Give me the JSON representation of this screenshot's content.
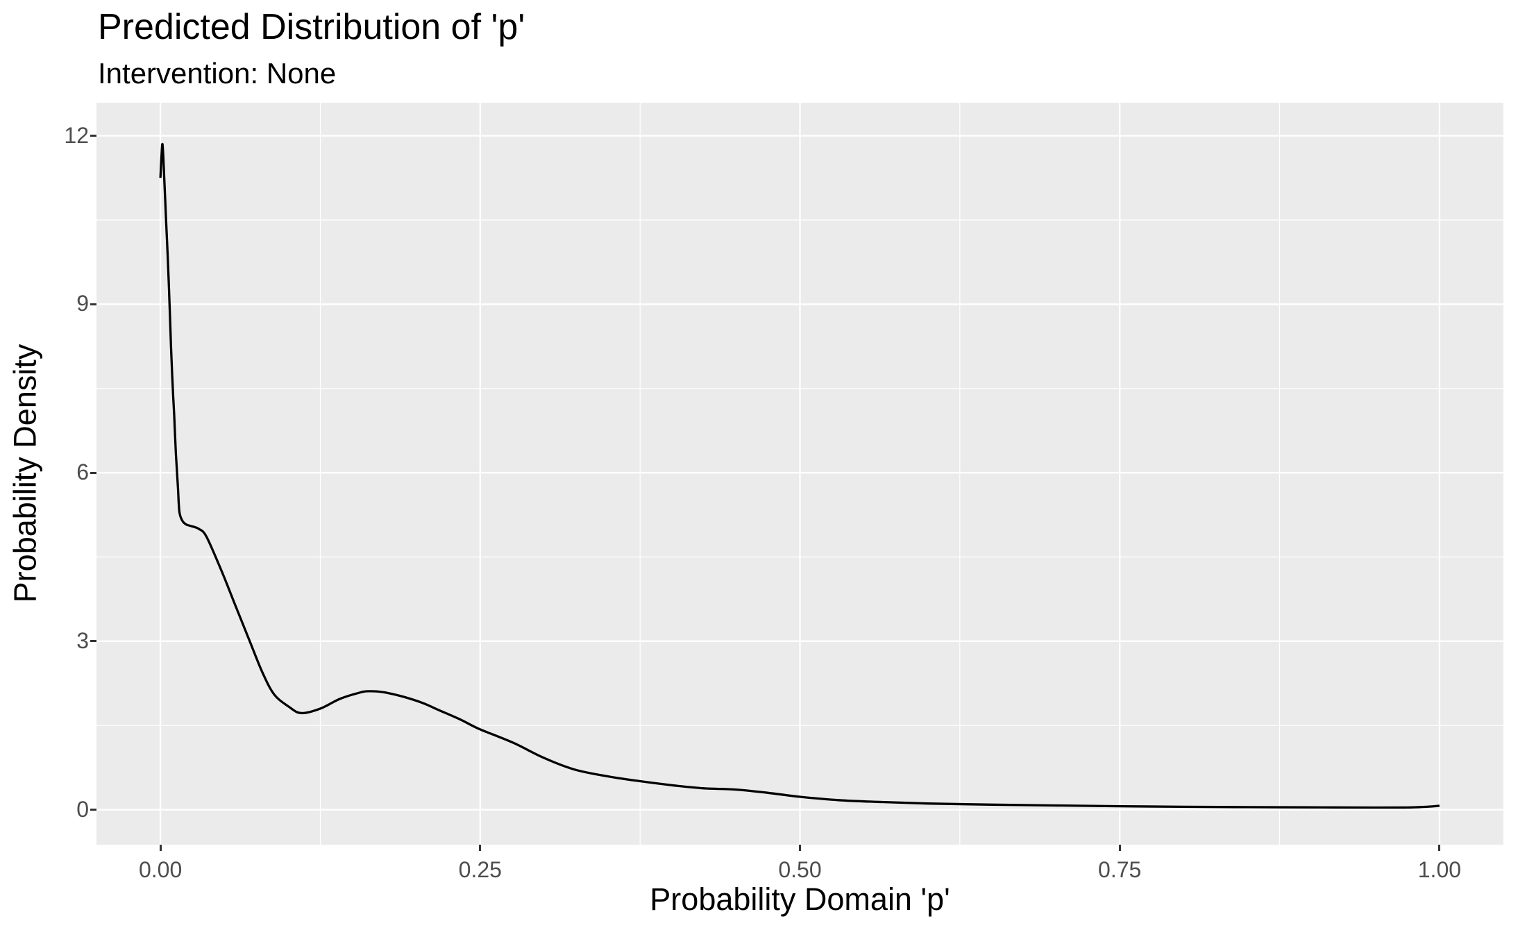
{
  "chart_data": {
    "type": "line",
    "subtype": "kernel-density",
    "title": "Predicted Distribution of 'p'",
    "subtitle": "Intervention: None",
    "xlabel": "Probability Domain 'p'",
    "ylabel": "Probability Density",
    "xlim": [
      -0.05,
      1.05
    ],
    "ylim": [
      -0.623,
      12.588
    ],
    "x_ticks": {
      "values": [
        0,
        0.25,
        0.5,
        0.75,
        1.0
      ],
      "labels": [
        "0.00",
        "0.25",
        "0.50",
        "0.75",
        "1.00"
      ]
    },
    "y_ticks": {
      "values": [
        0,
        3,
        6,
        9,
        12
      ],
      "labels": [
        "0",
        "3",
        "6",
        "9",
        "12"
      ]
    },
    "x_minor_ticks": [
      0.125,
      0.375,
      0.625,
      0.875
    ],
    "y_minor_ticks": [
      1.5,
      4.5,
      7.5,
      10.5
    ],
    "grid": "white major and minor gridlines on grey panel",
    "legend": "none",
    "series": [
      {
        "name": "density of p",
        "points": [
          [
            0.0,
            11.25
          ],
          [
            0.0008,
            11.62
          ],
          [
            0.0016,
            11.85
          ],
          [
            0.0026,
            11.45
          ],
          [
            0.0043,
            10.54
          ],
          [
            0.0058,
            9.8
          ],
          [
            0.0071,
            9.02
          ],
          [
            0.0083,
            8.24
          ],
          [
            0.0094,
            7.62
          ],
          [
            0.0107,
            7.04
          ],
          [
            0.0121,
            6.34
          ],
          [
            0.0137,
            5.73
          ],
          [
            0.0148,
            5.31
          ],
          [
            0.017,
            5.15
          ],
          [
            0.02,
            5.08
          ],
          [
            0.024,
            5.05
          ],
          [
            0.03,
            5.0
          ],
          [
            0.036,
            4.86
          ],
          [
            0.048,
            4.24
          ],
          [
            0.058,
            3.67
          ],
          [
            0.07,
            2.99
          ],
          [
            0.08,
            2.43
          ],
          [
            0.089,
            2.05
          ],
          [
            0.1,
            1.84
          ],
          [
            0.11,
            1.72
          ],
          [
            0.125,
            1.8
          ],
          [
            0.14,
            1.97
          ],
          [
            0.155,
            2.08
          ],
          [
            0.163,
            2.11
          ],
          [
            0.175,
            2.09
          ],
          [
            0.19,
            2.01
          ],
          [
            0.205,
            1.9
          ],
          [
            0.218,
            1.77
          ],
          [
            0.235,
            1.6
          ],
          [
            0.249,
            1.44
          ],
          [
            0.276,
            1.19
          ],
          [
            0.299,
            0.93
          ],
          [
            0.323,
            0.72
          ],
          [
            0.348,
            0.6
          ],
          [
            0.374,
            0.51
          ],
          [
            0.402,
            0.43
          ],
          [
            0.425,
            0.38
          ],
          [
            0.449,
            0.36
          ],
          [
            0.475,
            0.3
          ],
          [
            0.5,
            0.23
          ],
          [
            0.53,
            0.17
          ],
          [
            0.56,
            0.14
          ],
          [
            0.6,
            0.11
          ],
          [
            0.65,
            0.09
          ],
          [
            0.7,
            0.075
          ],
          [
            0.75,
            0.062
          ],
          [
            0.8,
            0.052
          ],
          [
            0.85,
            0.046
          ],
          [
            0.9,
            0.042
          ],
          [
            0.95,
            0.038
          ],
          [
            0.975,
            0.04
          ],
          [
            0.99,
            0.052
          ],
          [
            1.0,
            0.07
          ]
        ]
      }
    ]
  },
  "colors": {
    "background": "#FFFFFF",
    "panel_background": "#EBEBEB",
    "grid_major": "#FFFFFF",
    "grid_minor": "#FFFFFF",
    "curve": "#000000",
    "tick_label": "#4D4D4D",
    "tick_mark": "#333333",
    "title_text": "#000000"
  }
}
